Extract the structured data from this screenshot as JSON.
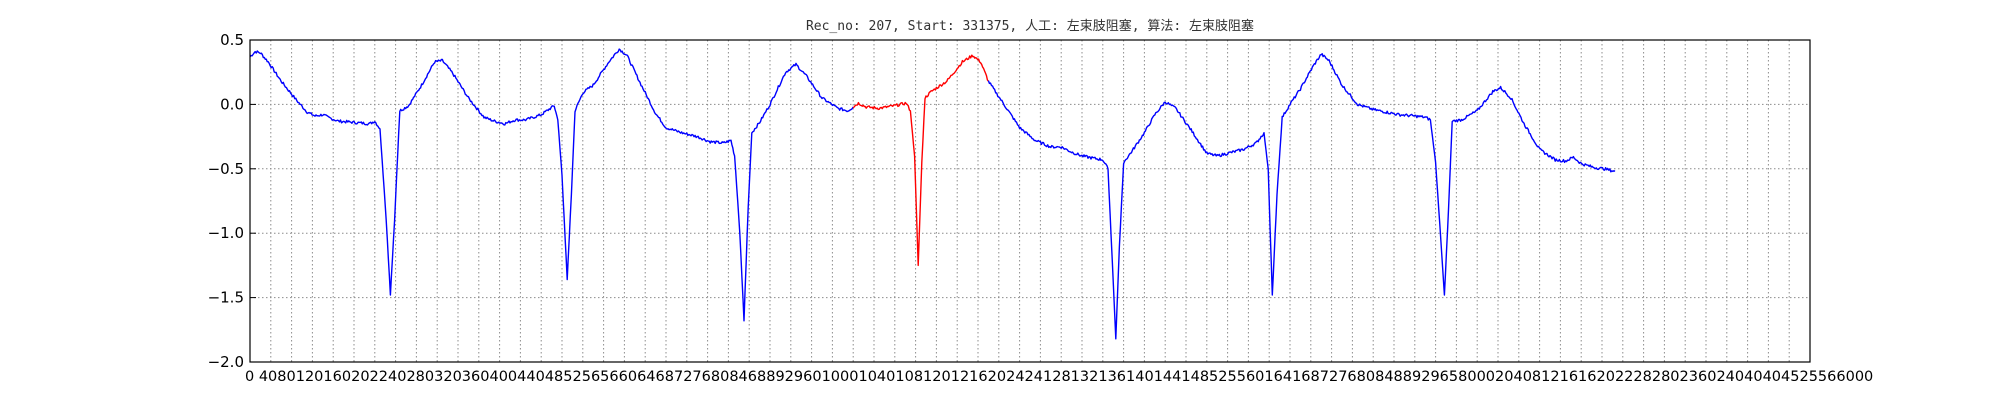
{
  "chart_data": {
    "type": "line",
    "title": "Rec_no: 207, Start: 331375, 人工: 左束肢阻塞, 算法: 左束肢阻塞",
    "xlabel": "",
    "ylabel": "",
    "xlim": [
      0,
      3000
    ],
    "ylim": [
      -2.0,
      0.5
    ],
    "grid": true,
    "yticks": [
      0.5,
      0.0,
      -0.5,
      -1.0,
      -1.5,
      -2.0
    ],
    "ytick_labels": [
      "0.5",
      "0.0",
      "−0.5",
      "−1.0",
      "−1.5",
      "−2.0"
    ],
    "xtick_step": 40,
    "xtick_text": "0 4080120160202240280320360400440485256566064687276808468892960100010401081201216202424128132136140144148525560164168727680848892965800020408121616202228280236024040404525566000",
    "colors": {
      "normal": "#0000ff",
      "highlight": "#ff0000"
    },
    "series": [
      {
        "color": "#0000ff",
        "points": [
          [
            0,
            0.37
          ],
          [
            10,
            0.41
          ],
          [
            20,
            0.4
          ],
          [
            35,
            0.33
          ],
          [
            60,
            0.18
          ],
          [
            90,
            0.03
          ],
          [
            110,
            -0.06
          ],
          [
            125,
            -0.09
          ],
          [
            140,
            -0.08
          ],
          [
            150,
            -0.1
          ],
          [
            170,
            -0.13
          ],
          [
            200,
            -0.14
          ],
          [
            230,
            -0.15
          ],
          [
            240,
            -0.13
          ],
          [
            250,
            -0.19
          ],
          [
            262,
            -0.9
          ],
          [
            270,
            -1.48
          ],
          [
            278,
            -0.9
          ],
          [
            288,
            -0.05
          ],
          [
            305,
            -0.01
          ],
          [
            330,
            0.15
          ],
          [
            355,
            0.33
          ],
          [
            370,
            0.34
          ],
          [
            390,
            0.24
          ],
          [
            420,
            0.05
          ],
          [
            450,
            -0.1
          ],
          [
            470,
            -0.13
          ],
          [
            490,
            -0.15
          ],
          [
            510,
            -0.12
          ],
          [
            530,
            -0.12
          ],
          [
            560,
            -0.08
          ],
          [
            585,
            -0.01
          ],
          [
            592,
            -0.12
          ],
          [
            600,
            -0.55
          ],
          [
            610,
            -1.36
          ],
          [
            618,
            -0.7
          ],
          [
            625,
            -0.05
          ],
          [
            640,
            0.09
          ],
          [
            660,
            0.15
          ],
          [
            690,
            0.33
          ],
          [
            710,
            0.43
          ],
          [
            725,
            0.38
          ],
          [
            750,
            0.17
          ],
          [
            780,
            -0.07
          ],
          [
            800,
            -0.18
          ],
          [
            830,
            -0.22
          ],
          [
            860,
            -0.25
          ],
          [
            885,
            -0.29
          ],
          [
            910,
            -0.3
          ],
          [
            925,
            -0.28
          ],
          [
            932,
            -0.4
          ],
          [
            942,
            -1.0
          ],
          [
            950,
            -1.68
          ],
          [
            958,
            -0.8
          ],
          [
            965,
            -0.22
          ],
          [
            980,
            -0.14
          ],
          [
            1000,
            0.0
          ],
          [
            1030,
            0.25
          ],
          [
            1050,
            0.31
          ],
          [
            1070,
            0.22
          ],
          [
            1100,
            0.05
          ],
          [
            1130,
            -0.03
          ],
          [
            1150,
            -0.05
          ],
          [
            1160,
            -0.02
          ]
        ]
      },
      {
        "color": "#ff0000",
        "points": [
          [
            1160,
            -0.02
          ],
          [
            1170,
            0.01
          ],
          [
            1185,
            -0.02
          ],
          [
            1210,
            -0.03
          ],
          [
            1240,
            -0.01
          ],
          [
            1262,
            0.01
          ],
          [
            1270,
            -0.05
          ],
          [
            1278,
            -0.4
          ],
          [
            1285,
            -1.25
          ],
          [
            1292,
            -0.45
          ],
          [
            1298,
            0.05
          ],
          [
            1310,
            0.1
          ],
          [
            1340,
            0.18
          ],
          [
            1370,
            0.33
          ],
          [
            1390,
            0.38
          ],
          [
            1405,
            0.33
          ],
          [
            1420,
            0.18
          ]
        ]
      },
      {
        "color": "#0000ff",
        "points": [
          [
            1420,
            0.18
          ],
          [
            1450,
            0.0
          ],
          [
            1480,
            -0.18
          ],
          [
            1510,
            -0.28
          ],
          [
            1540,
            -0.33
          ],
          [
            1560,
            -0.33
          ],
          [
            1580,
            -0.37
          ],
          [
            1600,
            -0.4
          ],
          [
            1625,
            -0.42
          ],
          [
            1640,
            -0.43
          ],
          [
            1650,
            -0.5
          ],
          [
            1658,
            -1.2
          ],
          [
            1665,
            -1.82
          ],
          [
            1672,
            -1.1
          ],
          [
            1680,
            -0.45
          ],
          [
            1695,
            -0.37
          ],
          [
            1720,
            -0.22
          ],
          [
            1740,
            -0.08
          ],
          [
            1760,
            0.02
          ],
          [
            1780,
            -0.03
          ],
          [
            1810,
            -0.2
          ],
          [
            1840,
            -0.38
          ],
          [
            1860,
            -0.4
          ],
          [
            1890,
            -0.37
          ],
          [
            1910,
            -0.35
          ],
          [
            1935,
            -0.3
          ],
          [
            1950,
            -0.22
          ],
          [
            1958,
            -0.5
          ],
          [
            1966,
            -1.48
          ],
          [
            1975,
            -0.7
          ],
          [
            1985,
            -0.1
          ],
          [
            2000,
            0.0
          ],
          [
            2020,
            0.12
          ],
          [
            2045,
            0.3
          ],
          [
            2060,
            0.39
          ],
          [
            2075,
            0.34
          ],
          [
            2100,
            0.15
          ],
          [
            2130,
            0.0
          ],
          [
            2160,
            -0.04
          ],
          [
            2185,
            -0.06
          ],
          [
            2210,
            -0.08
          ],
          [
            2240,
            -0.09
          ],
          [
            2260,
            -0.1
          ],
          [
            2270,
            -0.12
          ],
          [
            2280,
            -0.45
          ],
          [
            2290,
            -1.05
          ],
          [
            2297,
            -1.48
          ],
          [
            2305,
            -0.8
          ],
          [
            2312,
            -0.13
          ],
          [
            2330,
            -0.12
          ],
          [
            2360,
            -0.05
          ],
          [
            2390,
            0.1
          ],
          [
            2405,
            0.13
          ],
          [
            2425,
            0.05
          ],
          [
            2450,
            -0.15
          ],
          [
            2480,
            -0.35
          ],
          [
            2510,
            -0.43
          ],
          [
            2530,
            -0.44
          ],
          [
            2545,
            -0.41
          ],
          [
            2560,
            -0.46
          ],
          [
            2585,
            -0.49
          ],
          [
            2605,
            -0.5
          ],
          [
            2615,
            -0.51
          ],
          [
            2625,
            -0.52
          ]
        ]
      }
    ]
  }
}
